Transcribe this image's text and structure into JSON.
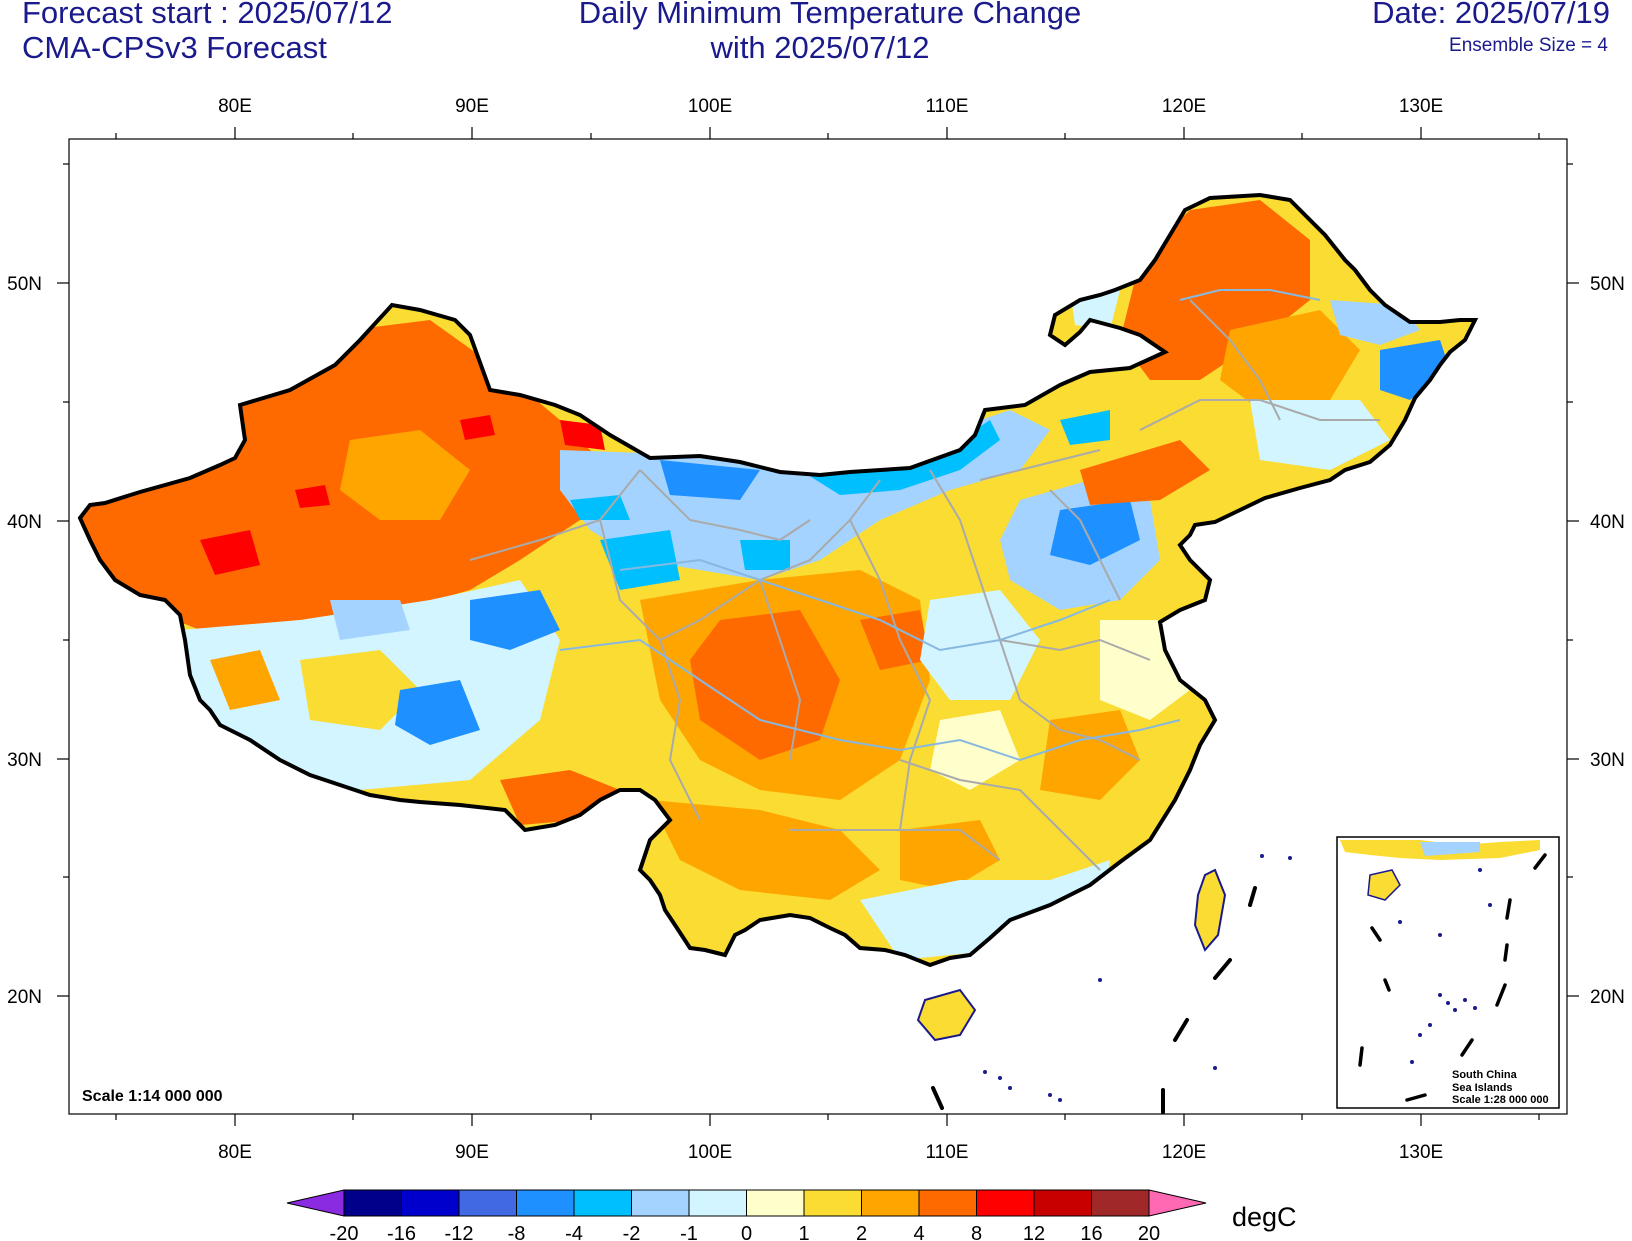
{
  "header": {
    "forecast_start": "Forecast start : 2025/07/12",
    "model": "CMA-CPSv3 Forecast",
    "title_line1": "Daily Minimum Temperature Change",
    "title_line2": "with 2025/07/12",
    "date": "Date: 2025/07/19",
    "ensemble": "Ensemble Size = 4"
  },
  "map": {
    "lon_labels": [
      "80E",
      "90E",
      "100E",
      "110E",
      "120E",
      "130E"
    ],
    "lat_labels": [
      "50N",
      "40N",
      "30N",
      "20N"
    ],
    "scale_main": "Scale 1:14 000 000",
    "inset": {
      "line1": "South China",
      "line2": "Sea Islands",
      "line3": "Scale 1:28 000 000"
    }
  },
  "colorbar": {
    "unit": "degC",
    "levels": [
      "-20",
      "-16",
      "-12",
      "-8",
      "-4",
      "-2",
      "-1",
      "0",
      "1",
      "2",
      "4",
      "8",
      "12",
      "16",
      "20"
    ],
    "colors": [
      "#8a2be2",
      "#00008b",
      "#0000cd",
      "#4169e1",
      "#1e90ff",
      "#00bfff",
      "#a4d3ff",
      "#d2f5ff",
      "#ffffcc",
      "#fadc32",
      "#ffa500",
      "#ff6a00",
      "#ff0000",
      "#c80000",
      "#a02828",
      "#ff69b4"
    ]
  }
}
